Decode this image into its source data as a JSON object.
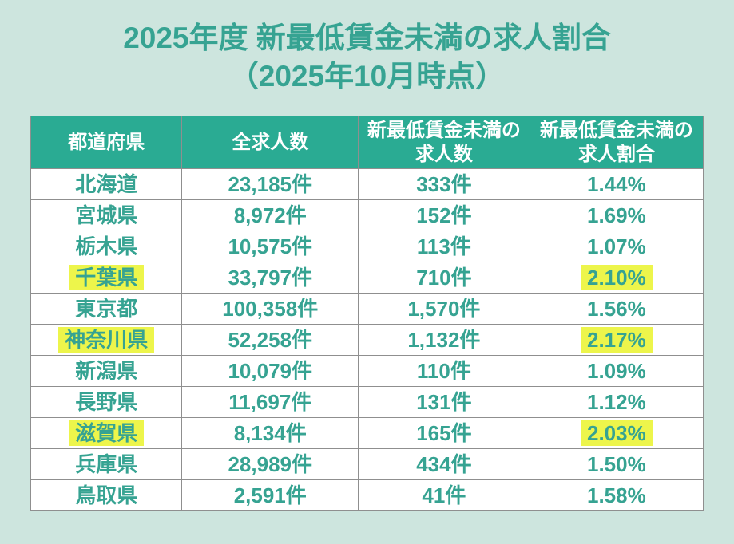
{
  "title": {
    "line1": "2025年度 新最低賃金未満の求人割合",
    "line2": "（2025年10月時点）"
  },
  "table": {
    "headers": [
      "都道府県",
      "全求人数",
      "新最低賃金未満の\n求人数",
      "新最低賃金未満の\n求人割合"
    ],
    "rows": [
      {
        "prefecture": "北海道",
        "total": "23,185件",
        "below": "333件",
        "rate": "1.44%",
        "highlight": false
      },
      {
        "prefecture": "宮城県",
        "total": "8,972件",
        "below": "152件",
        "rate": "1.69%",
        "highlight": false
      },
      {
        "prefecture": "栃木県",
        "total": "10,575件",
        "below": "113件",
        "rate": "1.07%",
        "highlight": false
      },
      {
        "prefecture": "千葉県",
        "total": "33,797件",
        "below": "710件",
        "rate": "2.10%",
        "highlight": true
      },
      {
        "prefecture": "東京都",
        "total": "100,358件",
        "below": "1,570件",
        "rate": "1.56%",
        "highlight": false
      },
      {
        "prefecture": "神奈川県",
        "total": "52,258件",
        "below": "1,132件",
        "rate": "2.17%",
        "highlight": true
      },
      {
        "prefecture": "新潟県",
        "total": "10,079件",
        "below": "110件",
        "rate": "1.09%",
        "highlight": false
      },
      {
        "prefecture": "長野県",
        "total": "11,697件",
        "below": "131件",
        "rate": "1.12%",
        "highlight": false
      },
      {
        "prefecture": "滋賀県",
        "total": "8,134件",
        "below": "165件",
        "rate": "2.03%",
        "highlight": true
      },
      {
        "prefecture": "兵庫県",
        "total": "28,989件",
        "below": "434件",
        "rate": "1.50%",
        "highlight": false
      },
      {
        "prefecture": "鳥取県",
        "total": "2,591件",
        "below": "41件",
        "rate": "1.58%",
        "highlight": false
      }
    ]
  },
  "chart_data": {
    "type": "table",
    "title": "2025年度 新最低賃金未満の求人割合（2025年10月時点）",
    "columns": [
      "都道府県",
      "全求人数",
      "新最低賃金未満の求人数",
      "新最低賃金未満の求人割合"
    ],
    "rows": [
      [
        "北海道",
        23185,
        333,
        1.44
      ],
      [
        "宮城県",
        8972,
        152,
        1.69
      ],
      [
        "栃木県",
        10575,
        113,
        1.07
      ],
      [
        "千葉県",
        33797,
        710,
        2.1
      ],
      [
        "東京都",
        100358,
        1570,
        1.56
      ],
      [
        "神奈川県",
        52258,
        1132,
        2.17
      ],
      [
        "新潟県",
        10079,
        110,
        1.09
      ],
      [
        "長野県",
        11697,
        131,
        1.12
      ],
      [
        "滋賀県",
        8134,
        165,
        2.03
      ],
      [
        "兵庫県",
        28989,
        434,
        1.5
      ],
      [
        "鳥取県",
        2591,
        41,
        1.58
      ]
    ],
    "units": {
      "全求人数": "件",
      "新最低賃金未満の求人数": "件",
      "新最低賃金未満の求人割合": "%"
    },
    "highlighted_rows": [
      "千葉県",
      "神奈川県",
      "滋賀県"
    ]
  },
  "colors": {
    "page_bg": "#cde5de",
    "accent": "#36a392",
    "header_bg": "#2aab93",
    "header_text": "#ffffff",
    "cell_bg": "#ffffff",
    "border": "#8f8f8f",
    "highlight": "#edf54b"
  }
}
